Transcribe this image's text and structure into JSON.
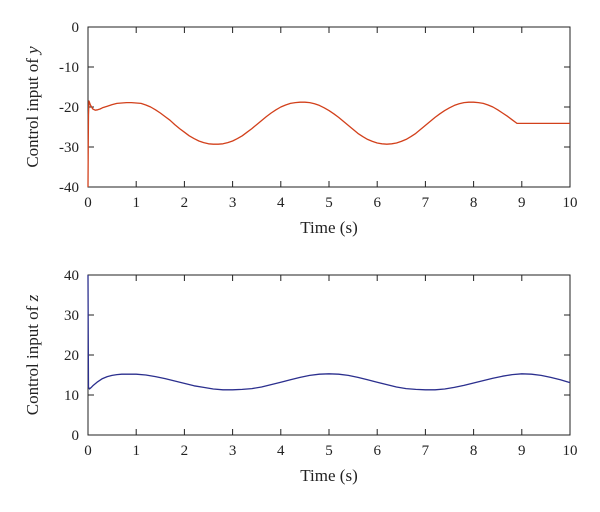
{
  "chart_data": [
    {
      "type": "line",
      "xlabel": "Time (s)",
      "ylabel_text": "Control input of ",
      "ylabel_var": "y",
      "xlim": [
        0,
        10
      ],
      "ylim": [
        -40,
        0
      ],
      "xticks": [
        0,
        1,
        2,
        3,
        4,
        5,
        6,
        7,
        8,
        9,
        10
      ],
      "yticks": [
        0,
        -10,
        -20,
        -30,
        -40
      ],
      "grid": false,
      "series": [
        {
          "color": "#d2401b",
          "x": [
            0,
            0.005,
            0.01,
            0.02,
            0.05,
            0.1,
            0.15,
            0.2,
            0.25,
            0.3,
            0.4,
            0.5,
            0.6,
            0.7,
            0.8,
            0.9,
            1.0,
            1.1,
            1.2,
            1.3,
            1.4,
            1.5,
            1.6,
            1.7,
            1.8,
            1.9,
            2.0,
            2.1,
            2.2,
            2.3,
            2.4,
            2.5,
            2.6,
            2.7,
            2.8,
            2.9,
            3.0,
            3.1,
            3.2,
            3.3,
            3.4,
            3.5,
            3.6,
            3.7,
            3.8,
            3.9,
            4.0,
            4.1,
            4.2,
            4.3,
            4.4,
            4.5,
            4.6,
            4.7,
            4.8,
            4.9,
            5.0,
            5.1,
            5.2,
            5.3,
            5.4,
            5.5,
            5.6,
            5.7,
            5.8,
            5.9,
            6.0,
            6.1,
            6.2,
            6.3,
            6.4,
            6.5,
            6.6,
            6.7,
            6.8,
            6.9,
            7.0,
            7.1,
            7.2,
            7.3,
            7.4,
            7.5,
            7.6,
            7.7,
            7.8,
            7.9,
            8.0,
            8.1,
            8.2,
            8.3,
            8.4,
            8.5,
            8.6,
            8.7,
            8.8,
            8.9,
            9.0,
            9.1,
            9.2,
            9.3,
            9.4,
            9.5,
            9.6,
            9.7,
            9.8,
            9.9,
            10.0
          ],
          "y": [
            -40,
            -30,
            -22,
            -18.5,
            -19.5,
            -20.5,
            -20.8,
            -20.7,
            -20.5,
            -20.2,
            -19.8,
            -19.4,
            -19.1,
            -19.0,
            -18.9,
            -18.9,
            -19.0,
            -19.1,
            -19.5,
            -20.0,
            -20.7,
            -21.5,
            -22.4,
            -23.3,
            -24.4,
            -25.4,
            -26.3,
            -27.2,
            -27.9,
            -28.5,
            -28.9,
            -29.2,
            -29.3,
            -29.3,
            -29.2,
            -28.9,
            -28.5,
            -27.9,
            -27.2,
            -26.3,
            -25.4,
            -24.4,
            -23.4,
            -22.4,
            -21.5,
            -20.7,
            -20.0,
            -19.5,
            -19.1,
            -18.9,
            -18.8,
            -18.8,
            -18.9,
            -19.2,
            -19.6,
            -20.2,
            -20.9,
            -21.7,
            -22.6,
            -23.6,
            -24.6,
            -25.6,
            -26.6,
            -27.4,
            -28.1,
            -28.6,
            -29.0,
            -29.2,
            -29.3,
            -29.2,
            -29.0,
            -28.6,
            -28.1,
            -27.4,
            -26.6,
            -25.6,
            -24.6,
            -23.6,
            -22.6,
            -21.7,
            -20.9,
            -20.2,
            -19.6,
            -19.2,
            -18.9,
            -18.8,
            -18.8,
            -18.9,
            -19.1,
            -19.5,
            -20.0,
            -20.7,
            -21.5,
            -22.3,
            -23.2,
            -24.1,
            -24.1,
            -24.1,
            -24.1,
            -24.1,
            -24.1,
            -24.1,
            -24.1,
            -24.1,
            -24.1,
            -24.1,
            -24.1
          ]
        }
      ]
    },
    {
      "type": "line",
      "xlabel": "Time (s)",
      "ylabel_text": "Control input of ",
      "ylabel_var": "z",
      "xlim": [
        0,
        10
      ],
      "ylim": [
        0,
        40
      ],
      "xticks": [
        0,
        1,
        2,
        3,
        4,
        5,
        6,
        7,
        8,
        9,
        10
      ],
      "yticks": [
        0,
        10,
        20,
        30,
        40
      ],
      "grid": false,
      "series": [
        {
          "color": "#2b2f8e",
          "x": [
            0,
            0.005,
            0.01,
            0.03,
            0.06,
            0.1,
            0.2,
            0.3,
            0.4,
            0.5,
            0.6,
            0.7,
            0.8,
            0.9,
            1.0,
            1.2,
            1.4,
            1.6,
            1.8,
            2.0,
            2.2,
            2.4,
            2.6,
            2.8,
            3.0,
            3.2,
            3.4,
            3.6,
            3.8,
            4.0,
            4.2,
            4.4,
            4.6,
            4.8,
            5.0,
            5.2,
            5.4,
            5.6,
            5.8,
            6.0,
            6.2,
            6.4,
            6.6,
            6.8,
            7.0,
            7.2,
            7.4,
            7.6,
            7.8,
            8.0,
            8.2,
            8.4,
            8.6,
            8.8,
            9.0,
            9.2,
            9.4,
            9.6,
            9.8,
            10.0
          ],
          "y": [
            40,
            25,
            12,
            11.5,
            11.8,
            12.3,
            13.3,
            14.1,
            14.6,
            14.9,
            15.1,
            15.2,
            15.2,
            15.2,
            15.2,
            15.0,
            14.6,
            14.1,
            13.5,
            12.9,
            12.3,
            11.9,
            11.5,
            11.3,
            11.3,
            11.4,
            11.6,
            12.0,
            12.6,
            13.2,
            13.8,
            14.4,
            14.9,
            15.2,
            15.3,
            15.2,
            14.9,
            14.4,
            13.8,
            13.2,
            12.6,
            12.0,
            11.6,
            11.4,
            11.3,
            11.3,
            11.5,
            11.9,
            12.4,
            13.0,
            13.6,
            14.2,
            14.7,
            15.1,
            15.3,
            15.2,
            14.9,
            14.4,
            13.8,
            13.1
          ]
        }
      ]
    }
  ]
}
